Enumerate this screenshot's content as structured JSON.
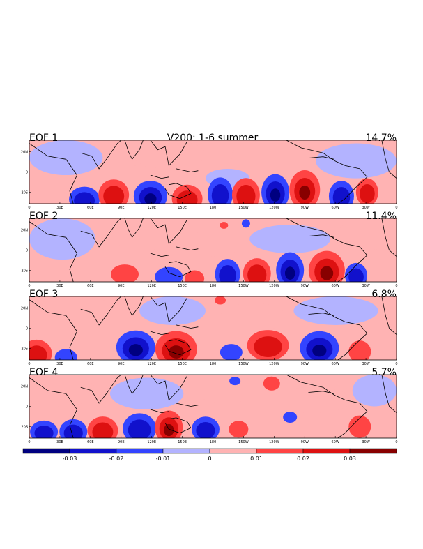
{
  "title": "V200: 1-6 summer",
  "colors": {
    "neg3": "#000080",
    "neg2": "#1111cc",
    "neg1": "#3344ff",
    "neg0": "#b3b3ff",
    "pos0": "#ffb3b3",
    "pos1": "#ff4444",
    "pos2": "#dd1111",
    "pos3": "#880000",
    "coast": "#000000"
  },
  "panels": [
    {
      "label": "EOF 1",
      "variance": "14.7%"
    },
    {
      "label": "EOF 2",
      "variance": "11.4%"
    },
    {
      "label": "EOF 3",
      "variance": "6.8%"
    },
    {
      "label": "EOF 4",
      "variance": "5.7%"
    }
  ],
  "lat_ticks": [
    "20N",
    "0",
    "20S"
  ],
  "lon_ticks": [
    "0",
    "30E",
    "60E",
    "90E",
    "120E",
    "150E",
    "180",
    "150W",
    "120W",
    "90W",
    "60W",
    "30W",
    "0"
  ],
  "colorbar": {
    "labels": [
      "-0.03",
      "-0.02",
      "-0.01",
      "0",
      "0.01",
      "0.02",
      "0.03"
    ]
  }
}
